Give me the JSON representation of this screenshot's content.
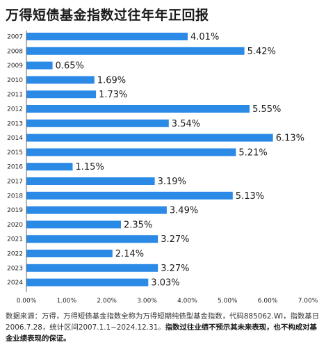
{
  "title": "万得短债基金指数过往年年正回报",
  "chart_data": {
    "type": "bar",
    "orientation": "horizontal",
    "categories": [
      "2007",
      "2008",
      "2009",
      "2010",
      "2011",
      "2012",
      "2013",
      "2014",
      "2015",
      "2016",
      "2017",
      "2018",
      "2019",
      "2020",
      "2021",
      "2022",
      "2023",
      "2024"
    ],
    "values": [
      4.01,
      5.42,
      0.65,
      1.69,
      1.73,
      5.55,
      3.54,
      6.13,
      5.21,
      1.15,
      3.19,
      5.13,
      3.49,
      2.35,
      3.27,
      2.14,
      3.27,
      3.03
    ],
    "value_labels": [
      "4.01%",
      "5.42%",
      "0.65%",
      "1.69%",
      "1.73%",
      "5.55%",
      "3.54%",
      "6.13%",
      "5.21%",
      "1.15%",
      "3.19%",
      "5.13%",
      "3.49%",
      "2.35%",
      "3.27%",
      "2.14%",
      "3.27%",
      "3.03%"
    ],
    "xlim": [
      0,
      7
    ],
    "x_ticks": [
      "0.00%",
      "1.00%",
      "2.00%",
      "3.00%",
      "4.00%",
      "5.00%",
      "6.00%",
      "7.00%"
    ],
    "bar_color": "#2b8ae6",
    "grid": false,
    "legend": "none"
  },
  "footer": {
    "source_text": "数据来源：万得，万得短债基金指数全称为万得短期纯债型基金指数，代码885062.WI，指数基日2006.7.28，统计区间2007.1.1~2024.12.31。",
    "disclaimer_text": "指数过往业绩不预示其未来表现，也不构成对基金业绩表现的保证。"
  }
}
